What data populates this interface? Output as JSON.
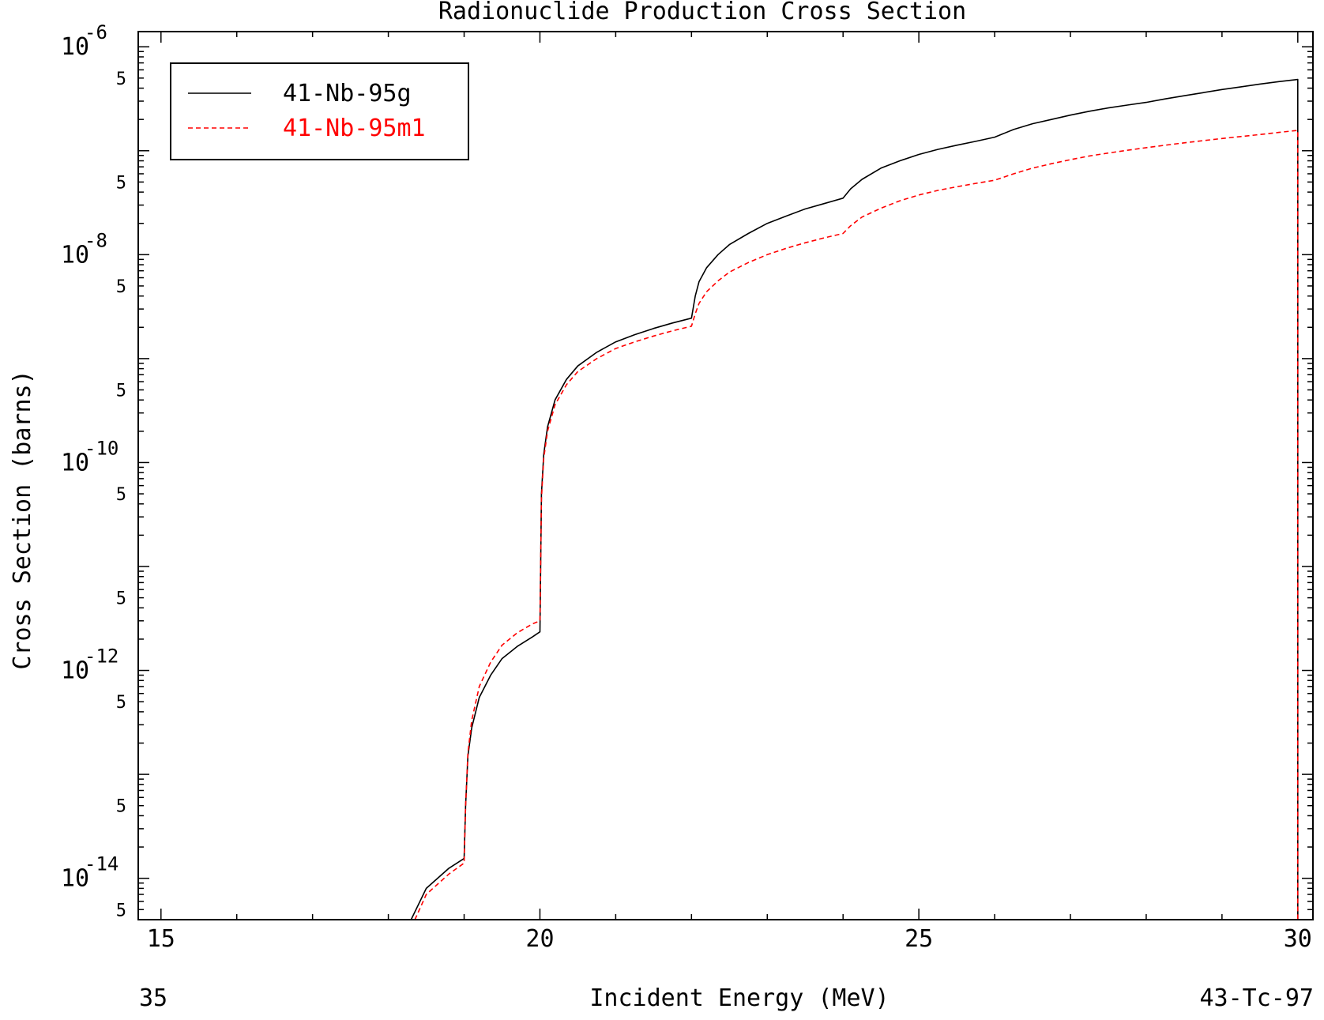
{
  "chart_data": {
    "type": "line",
    "title": "Radionuclide Production Cross Section",
    "xlabel": "Incident Energy (MeV)",
    "ylabel": "Cross Section (barns)",
    "x_scale": "linear",
    "y_scale": "log",
    "xlim": [
      14.7,
      30.2
    ],
    "ylim": [
      4e-15,
      1.4e-06
    ],
    "x_ticks": [
      {
        "value": 15,
        "label": "15"
      },
      {
        "value": 20,
        "label": "20"
      },
      {
        "value": 25,
        "label": "25"
      },
      {
        "value": 30,
        "label": "30"
      }
    ],
    "y_ticks": [
      {
        "value": 1e-06,
        "base": "10",
        "exp": "-6"
      },
      {
        "value": 1e-08,
        "base": "10",
        "exp": "-8"
      },
      {
        "value": 1e-10,
        "base": "10",
        "exp": "-10"
      },
      {
        "value": 1e-12,
        "base": "10",
        "exp": "-12"
      },
      {
        "value": 1e-14,
        "base": "10",
        "exp": "-14"
      }
    ],
    "y_minor_label": "5",
    "legend_position": "top-left",
    "grid": false,
    "series": [
      {
        "name": "41-Nb-95g",
        "color": "#000000",
        "dash": "solid",
        "points": [
          [
            18.3,
            4e-15
          ],
          [
            18.5,
            8e-15
          ],
          [
            18.8,
            1.25e-14
          ],
          [
            19.0,
            1.55e-14
          ],
          [
            19.02,
            5e-14
          ],
          [
            19.05,
            1.5e-13
          ],
          [
            19.1,
            2.8e-13
          ],
          [
            19.2,
            5.5e-13
          ],
          [
            19.35,
            9e-13
          ],
          [
            19.5,
            1.3e-12
          ],
          [
            19.7,
            1.7e-12
          ],
          [
            19.9,
            2.1e-12
          ],
          [
            20.0,
            2.35e-12
          ],
          [
            20.02,
            5e-11
          ],
          [
            20.05,
            1.2e-10
          ],
          [
            20.1,
            2.2e-10
          ],
          [
            20.2,
            4e-10
          ],
          [
            20.35,
            6.3e-10
          ],
          [
            20.5,
            8.5e-10
          ],
          [
            20.75,
            1.15e-09
          ],
          [
            21.0,
            1.45e-09
          ],
          [
            21.25,
            1.7e-09
          ],
          [
            21.5,
            1.95e-09
          ],
          [
            21.75,
            2.2e-09
          ],
          [
            22.0,
            2.45e-09
          ],
          [
            22.05,
            4e-09
          ],
          [
            22.1,
            5.5e-09
          ],
          [
            22.2,
            7.5e-09
          ],
          [
            22.35,
            1e-08
          ],
          [
            22.5,
            1.25e-08
          ],
          [
            22.75,
            1.6e-08
          ],
          [
            23.0,
            2e-08
          ],
          [
            23.25,
            2.35e-08
          ],
          [
            23.5,
            2.75e-08
          ],
          [
            23.75,
            3.1e-08
          ],
          [
            24.0,
            3.5e-08
          ],
          [
            24.1,
            4.3e-08
          ],
          [
            24.25,
            5.3e-08
          ],
          [
            24.5,
            6.8e-08
          ],
          [
            24.75,
            8e-08
          ],
          [
            25.0,
            9.2e-08
          ],
          [
            25.25,
            1.03e-07
          ],
          [
            25.5,
            1.13e-07
          ],
          [
            25.75,
            1.23e-07
          ],
          [
            26.0,
            1.35e-07
          ],
          [
            26.25,
            1.6e-07
          ],
          [
            26.5,
            1.82e-07
          ],
          [
            26.75,
            2e-07
          ],
          [
            27.0,
            2.2e-07
          ],
          [
            27.25,
            2.4e-07
          ],
          [
            27.5,
            2.58e-07
          ],
          [
            27.75,
            2.75e-07
          ],
          [
            28.0,
            2.92e-07
          ],
          [
            28.25,
            3.15e-07
          ],
          [
            28.5,
            3.38e-07
          ],
          [
            28.75,
            3.62e-07
          ],
          [
            29.0,
            3.88e-07
          ],
          [
            29.25,
            4.12e-07
          ],
          [
            29.5,
            4.38e-07
          ],
          [
            29.75,
            4.62e-07
          ],
          [
            30.0,
            4.85e-07
          ],
          [
            30.0,
            4e-15
          ]
        ]
      },
      {
        "name": "41-Nb-95m1",
        "color": "#ff0000",
        "dash": "dashed",
        "points": [
          [
            18.35,
            4e-15
          ],
          [
            18.5,
            7e-15
          ],
          [
            18.8,
            1.1e-14
          ],
          [
            19.0,
            1.4e-14
          ],
          [
            19.02,
            5e-14
          ],
          [
            19.05,
            1.6e-13
          ],
          [
            19.1,
            3.3e-13
          ],
          [
            19.2,
            7e-13
          ],
          [
            19.35,
            1.2e-12
          ],
          [
            19.5,
            1.75e-12
          ],
          [
            19.7,
            2.3e-12
          ],
          [
            19.9,
            2.8e-12
          ],
          [
            20.0,
            3e-12
          ],
          [
            20.02,
            4.5e-11
          ],
          [
            20.05,
            1.1e-10
          ],
          [
            20.1,
            2e-10
          ],
          [
            20.2,
            3.6e-10
          ],
          [
            20.35,
            5.6e-10
          ],
          [
            20.5,
            7.5e-10
          ],
          [
            20.75,
            1e-09
          ],
          [
            21.0,
            1.25e-09
          ],
          [
            21.25,
            1.45e-09
          ],
          [
            21.5,
            1.65e-09
          ],
          [
            21.75,
            1.85e-09
          ],
          [
            22.0,
            2.05e-09
          ],
          [
            22.05,
            2.7e-09
          ],
          [
            22.1,
            3.4e-09
          ],
          [
            22.2,
            4.4e-09
          ],
          [
            22.35,
            5.6e-09
          ],
          [
            22.5,
            6.8e-09
          ],
          [
            22.75,
            8.4e-09
          ],
          [
            23.0,
            1e-08
          ],
          [
            23.25,
            1.15e-08
          ],
          [
            23.5,
            1.3e-08
          ],
          [
            23.75,
            1.45e-08
          ],
          [
            24.0,
            1.6e-08
          ],
          [
            24.1,
            1.9e-08
          ],
          [
            24.25,
            2.3e-08
          ],
          [
            24.5,
            2.8e-08
          ],
          [
            24.75,
            3.3e-08
          ],
          [
            25.0,
            3.75e-08
          ],
          [
            25.25,
            4.15e-08
          ],
          [
            25.5,
            4.5e-08
          ],
          [
            25.75,
            4.85e-08
          ],
          [
            26.0,
            5.2e-08
          ],
          [
            26.25,
            6e-08
          ],
          [
            26.5,
            6.8e-08
          ],
          [
            26.75,
            7.5e-08
          ],
          [
            27.0,
            8.2e-08
          ],
          [
            27.25,
            8.9e-08
          ],
          [
            27.5,
            9.5e-08
          ],
          [
            27.75,
            1.01e-07
          ],
          [
            28.0,
            1.07e-07
          ],
          [
            28.25,
            1.13e-07
          ],
          [
            28.5,
            1.19e-07
          ],
          [
            28.75,
            1.25e-07
          ],
          [
            29.0,
            1.31e-07
          ],
          [
            29.25,
            1.37e-07
          ],
          [
            29.5,
            1.43e-07
          ],
          [
            29.75,
            1.5e-07
          ],
          [
            30.0,
            1.57e-07
          ],
          [
            30.0,
            4e-15
          ]
        ]
      }
    ],
    "footer": {
      "left": "35",
      "right": "43-Tc-97"
    }
  }
}
